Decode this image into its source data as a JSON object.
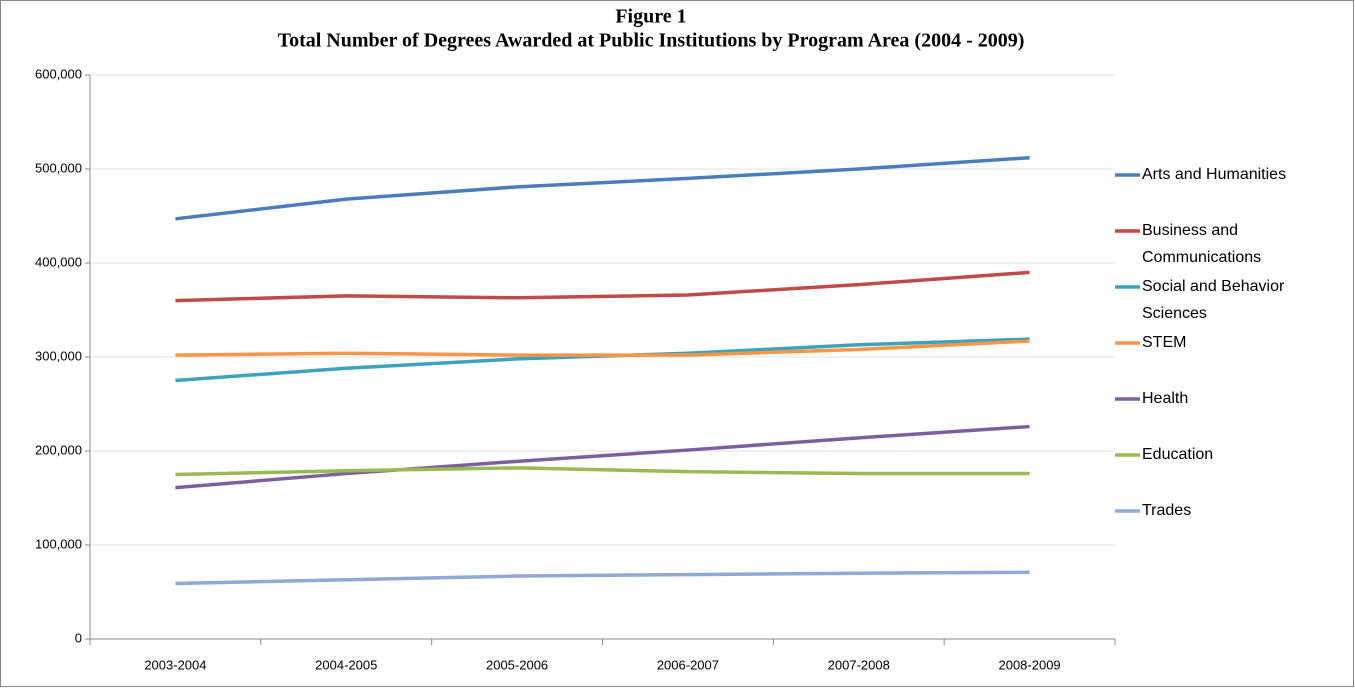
{
  "chart_data": {
    "type": "line",
    "title": "Figure 1",
    "subtitle": "Total Number of Degrees Awarded at Public Institutions by Program Area (2004 - 2009)",
    "categories": [
      "2003-2004",
      "2004-2005",
      "2005-2006",
      "2006-2007",
      "2007-2008",
      "2008-2009"
    ],
    "series": [
      {
        "name": "Arts and Humanities",
        "color": "#4a7ebb",
        "values": [
          447000,
          468000,
          481000,
          490000,
          500000,
          512000
        ]
      },
      {
        "name": "Business and Communications",
        "color": "#be4b48",
        "values": [
          360000,
          365000,
          363000,
          366000,
          377000,
          390000
        ]
      },
      {
        "name": "Social and Behavior Sciences",
        "color": "#3fa2bb",
        "values": [
          275000,
          288000,
          298000,
          304000,
          313000,
          319000
        ]
      },
      {
        "name": "STEM",
        "color": "#f79646",
        "values": [
          302000,
          304000,
          302000,
          302000,
          308000,
          317000
        ]
      },
      {
        "name": "Health",
        "color": "#7d5fa0",
        "values": [
          161000,
          176000,
          189000,
          201000,
          214000,
          226000
        ]
      },
      {
        "name": "Education",
        "color": "#98b954",
        "values": [
          175000,
          179000,
          182000,
          178000,
          176000,
          176000
        ]
      },
      {
        "name": "Trades",
        "color": "#8ea9d6",
        "values": [
          59000,
          63000,
          67000,
          68500,
          70000,
          71000
        ]
      }
    ],
    "ylim": [
      0,
      600000
    ],
    "yticks": [
      0,
      {
        "value": 100000,
        "label": "100,000"
      },
      {
        "value": 200000,
        "label": "200,000"
      },
      {
        "value": 300000,
        "label": "300,000"
      },
      {
        "value": 400000,
        "label": "400,000"
      },
      {
        "value": 500000,
        "label": "500,000"
      },
      {
        "value": 600000,
        "label": "600,000"
      }
    ],
    "grid": true,
    "legend": "right"
  }
}
